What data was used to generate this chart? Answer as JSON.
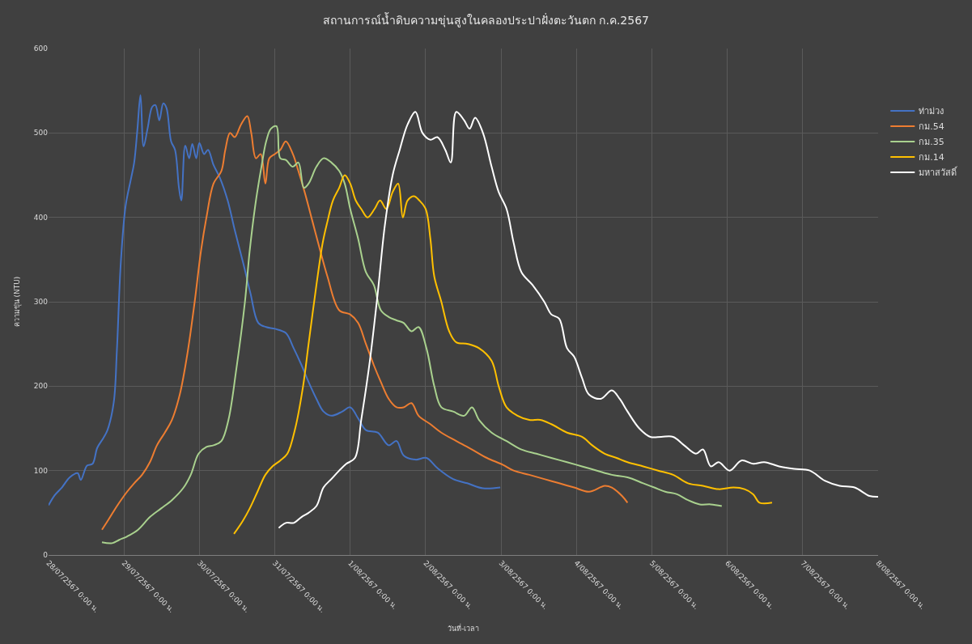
{
  "chart_data": {
    "type": "line",
    "title": "สถานการณ์น้ำดิบความขุ่นสูงในคลองประปาฝั่งตะวันตก ก.ค.2567",
    "xlabel": "วันที่-เวลา",
    "ylabel": "ความขุ่น (NTU)",
    "xlim": [
      "2567-07-28",
      "2567-08-08"
    ],
    "ylim": [
      0,
      600
    ],
    "yticks": [
      0,
      100,
      200,
      300,
      400,
      500,
      600
    ],
    "xticks": [
      {
        "value": "2567-07-28",
        "label": "28/07/2567 0:00 น."
      },
      {
        "value": "2567-07-29",
        "label": "29/07/2567 0:00 น."
      },
      {
        "value": "2567-07-30",
        "label": "30/07/2567 0:00 น."
      },
      {
        "value": "2567-07-31",
        "label": "31/07/2567 0:00 น."
      },
      {
        "value": "2567-08-01",
        "label": "1/08/2567 0:00 น."
      },
      {
        "value": "2567-08-02",
        "label": "2/08/2567 0:00 น."
      },
      {
        "value": "2567-08-03",
        "label": "3/08/2567 0:00 น."
      },
      {
        "value": "2567-08-04",
        "label": "4/08/2567 0:00 น."
      },
      {
        "value": "2567-08-05",
        "label": "5/08/2567 0:00 น."
      },
      {
        "value": "2567-08-06",
        "label": "6/08/2567 0:00 น."
      },
      {
        "value": "2567-08-07",
        "label": "7/08/2567 0:00 น."
      },
      {
        "value": "2567-08-08",
        "label": "8/08/2567 0:00 น."
      }
    ],
    "grid": true,
    "legend": "right",
    "line_style": "solid",
    "series": [
      {
        "name": "ท่าม่วง",
        "color": "#4472c4",
        "x": [
          "2567-07-28T00:00",
          "2567-07-28T02:00",
          "2567-07-28T04:15",
          "2567-07-28T06:45",
          "2567-07-28T09:15",
          "2567-07-28T10:15",
          "2567-07-28T12:15",
          "2567-07-28T14:00",
          "2567-07-28T15:30",
          "2567-07-28T17:30",
          "2567-07-28T18:45",
          "2567-07-28T20:45",
          "2567-07-28T21:45",
          "2567-07-28T23:00",
          "2567-07-29T00:30",
          "2567-07-29T02:15",
          "2567-07-29T03:15",
          "2567-07-29T04:15",
          "2567-07-29T05:15",
          "2567-07-29T06:15",
          "2567-07-29T07:30",
          "2567-07-29T09:00",
          "2567-07-29T10:00",
          "2567-07-29T11:15",
          "2567-07-29T12:30",
          "2567-07-29T13:30",
          "2567-07-29T15:00",
          "2567-07-29T16:15",
          "2567-07-29T17:30",
          "2567-07-29T18:15",
          "2567-07-29T19:30",
          "2567-07-29T20:45",
          "2567-07-29T21:45",
          "2567-07-29T23:00",
          "2567-07-30T00:00",
          "2567-07-30T01:30",
          "2567-07-30T02:45",
          "2567-07-30T04:30",
          "2567-07-30T06:30",
          "2567-07-30T09:00",
          "2567-07-30T11:15",
          "2567-07-30T14:00",
          "2567-07-30T16:15",
          "2567-07-30T18:45",
          "2567-07-30T21:15",
          "2567-07-31T00:00",
          "2567-07-31T03:30",
          "2567-07-31T06:00",
          "2567-07-31T08:30",
          "2567-07-31T10:45",
          "2567-07-31T13:15",
          "2567-07-31T15:30",
          "2567-07-31T18:00",
          "2567-07-31T21:30",
          "2567-08-01T00:00",
          "2567-08-01T02:30",
          "2567-08-01T05:00",
          "2567-08-01T08:45",
          "2567-08-01T12:15",
          "2567-08-01T14:45",
          "2567-08-01T17:00",
          "2567-08-01T20:45",
          "2567-08-02T00:15",
          "2567-08-02T03:45",
          "2567-08-02T08:45",
          "2567-08-02T13:15",
          "2567-08-02T18:15",
          "2567-08-02T23:45"
        ],
        "values": [
          59,
          71,
          80,
          92,
          97,
          89,
          106,
          108,
          127,
          139,
          148,
          181,
          243,
          347,
          413,
          446,
          465,
          503,
          545,
          484,
          505,
          531,
          533,
          515,
          535,
          530,
          490,
          480,
          435,
          420,
          485,
          470,
          487,
          470,
          488,
          475,
          480,
          462,
          447,
          420,
          385,
          345,
          310,
          275,
          270,
          268,
          263,
          245,
          225,
          205,
          185,
          170,
          165,
          170,
          175,
          162,
          148,
          145,
          130,
          135,
          118,
          113,
          115,
          103,
          90,
          85,
          79,
          80
        ]
      },
      {
        "name": "กม.54",
        "color": "#ed7d31",
        "x": [
          "2567-07-28T17:00",
          "2567-07-28T18:45",
          "2567-07-28T20:45",
          "2567-07-28T22:30",
          "2567-07-29T01:00",
          "2567-07-29T03:15",
          "2567-07-29T05:45",
          "2567-07-29T08:15",
          "2567-07-29T10:30",
          "2567-07-29T13:00",
          "2567-07-29T15:15",
          "2567-07-29T17:45",
          "2567-07-29T20:15",
          "2567-07-29T22:30",
          "2567-07-30T00:30",
          "2567-07-30T02:15",
          "2567-07-30T04:30",
          "2567-07-30T07:00",
          "2567-07-30T08:15",
          "2567-07-30T09:45",
          "2567-07-30T11:15",
          "2567-07-30T13:15",
          "2567-07-30T15:15",
          "2567-07-30T16:30",
          "2567-07-30T18:00",
          "2567-07-30T19:30",
          "2567-07-30T21:00",
          "2567-07-30T22:15",
          "2567-07-31T00:00",
          "2567-07-31T01:45",
          "2567-07-31T03:30",
          "2567-07-31T05:45",
          "2567-07-31T07:30",
          "2567-07-31T09:30",
          "2567-07-31T12:00",
          "2567-07-31T14:30",
          "2567-07-31T16:45",
          "2567-07-31T20:30",
          "2567-08-01T00:00",
          "2567-08-01T02:30",
          "2567-08-01T05:00",
          "2567-08-01T07:30",
          "2567-08-01T09:45",
          "2567-08-01T12:15",
          "2567-08-01T14:45",
          "2567-08-01T17:00",
          "2567-08-01T19:30",
          "2567-08-01T21:45",
          "2567-08-02T01:30",
          "2567-08-02T05:00",
          "2567-08-02T09:45",
          "2567-08-02T14:45",
          "2567-08-02T19:30",
          "2567-08-03T00:30",
          "2567-08-03T04:00",
          "2567-08-03T09:00",
          "2567-08-03T13:45",
          "2567-08-03T18:30",
          "2567-08-03T23:15",
          "2567-08-04T04:00",
          "2567-08-04T09:00",
          "2567-08-04T11:15",
          "2567-08-04T14:30",
          "2567-08-04T16:15"
        ],
        "values": [
          30,
          40,
          52,
          62,
          75,
          85,
          95,
          110,
          130,
          145,
          160,
          190,
          240,
          300,
          360,
          400,
          440,
          455,
          480,
          500,
          495,
          510,
          520,
          500,
          470,
          475,
          440,
          470,
          475,
          480,
          490,
          475,
          455,
          430,
          395,
          360,
          330,
          290,
          285,
          275,
          250,
          225,
          205,
          185,
          175,
          175,
          180,
          165,
          155,
          145,
          135,
          125,
          115,
          107,
          100,
          95,
          90,
          85,
          80,
          75,
          82,
          80,
          70,
          62
        ]
      },
      {
        "name": "กม.35",
        "color": "#a9d18e",
        "x": [
          "2567-07-28T17:00",
          "2567-07-28T20:15",
          "2567-07-28T22:30",
          "2567-07-29T01:00",
          "2567-07-29T04:30",
          "2567-07-29T08:15",
          "2567-07-29T11:45",
          "2567-07-29T15:15",
          "2567-07-29T19:00",
          "2567-07-29T21:15",
          "2567-07-29T23:45",
          "2567-07-30T02:15",
          "2567-07-30T04:30",
          "2567-07-30T07:00",
          "2567-07-30T09:15",
          "2567-07-30T11:45",
          "2567-07-30T14:30",
          "2567-07-30T16:00",
          "2567-07-30T18:00",
          "2567-07-30T19:45",
          "2567-07-30T21:15",
          "2567-07-30T22:45",
          "2567-07-31T00:30",
          "2567-07-31T01:45",
          "2567-07-31T03:30",
          "2567-07-31T05:45",
          "2567-07-31T07:30",
          "2567-07-31T09:15",
          "2567-07-31T10:45",
          "2567-07-31T13:15",
          "2567-07-31T15:30",
          "2567-07-31T18:00",
          "2567-07-31T20:30",
          "2567-07-31T22:15",
          "2567-08-01T00:00",
          "2567-08-01T02:30",
          "2567-08-01T05:00",
          "2567-08-01T07:30",
          "2567-08-01T09:45",
          "2567-08-01T12:15",
          "2567-08-01T14:45",
          "2567-08-01T17:00",
          "2567-08-01T19:30",
          "2567-08-01T21:45",
          "2567-08-02T00:15",
          "2567-08-02T02:45",
          "2567-08-02T05:00",
          "2567-08-02T08:45",
          "2567-08-02T12:15",
          "2567-08-02T14:45",
          "2567-08-02T17:00",
          "2567-08-02T21:00",
          "2567-08-03T01:45",
          "2567-08-03T06:30",
          "2567-08-03T11:15",
          "2567-08-03T16:00",
          "2567-08-03T21:00",
          "2567-08-04T01:45",
          "2567-08-04T06:30",
          "2567-08-04T11:15",
          "2567-08-04T16:15",
          "2567-08-04T21:15",
          "2567-08-05T00:45",
          "2567-08-05T04:15",
          "2567-08-05T08:00",
          "2567-08-05T11:30",
          "2567-08-05T15:15",
          "2567-08-05T18:45",
          "2567-08-05T22:15"
        ],
        "values": [
          15,
          14,
          18,
          22,
          30,
          45,
          55,
          65,
          80,
          95,
          120,
          128,
          130,
          135,
          160,
          220,
          300,
          360,
          420,
          460,
          490,
          505,
          508,
          470,
          468,
          460,
          465,
          435,
          440,
          460,
          470,
          465,
          455,
          440,
          410,
          375,
          335,
          320,
          290,
          282,
          278,
          275,
          265,
          270,
          245,
          200,
          175,
          170,
          165,
          175,
          160,
          145,
          135,
          125,
          120,
          115,
          110,
          105,
          100,
          95,
          92,
          85,
          80,
          75,
          72,
          65,
          60,
          60,
          58
        ]
      },
      {
        "name": "กม.14",
        "color": "#ffc000",
        "x": [
          "2567-07-30T11:00",
          "2567-07-30T13:45",
          "2567-07-30T16:00",
          "2567-07-30T18:30",
          "2567-07-30T21:00",
          "2567-07-30T23:15",
          "2567-07-31T01:45",
          "2567-07-31T04:00",
          "2567-07-31T06:30",
          "2567-07-31T09:00",
          "2567-07-31T10:45",
          "2567-07-31T13:15",
          "2567-07-31T15:15",
          "2567-07-31T16:45",
          "2567-07-31T18:30",
          "2567-07-31T20:30",
          "2567-07-31T22:15",
          "2567-08-01T00:00",
          "2567-08-01T01:45",
          "2567-08-01T03:30",
          "2567-08-01T05:30",
          "2567-08-01T07:45",
          "2567-08-01T09:30",
          "2567-08-01T11:30",
          "2567-08-01T13:30",
          "2567-08-01T15:15",
          "2567-08-01T16:45",
          "2567-08-01T18:15",
          "2567-08-01T20:15",
          "2567-08-01T22:00",
          "2567-08-02T00:00",
          "2567-08-02T01:30",
          "2567-08-02T02:45",
          "2567-08-02T05:00",
          "2567-08-02T07:30",
          "2567-08-02T09:45",
          "2567-08-02T13:30",
          "2567-08-02T17:00",
          "2567-08-02T21:00",
          "2567-08-02T23:15",
          "2567-08-03T01:45",
          "2567-08-03T05:15",
          "2567-08-03T09:00",
          "2567-08-03T12:30",
          "2567-08-03T16:00",
          "2567-08-03T21:00",
          "2567-08-04T01:45",
          "2567-08-04T05:00",
          "2567-08-04T09:00",
          "2567-08-04T12:45",
          "2567-08-04T16:15",
          "2567-08-04T21:15",
          "2567-08-05T02:00",
          "2567-08-05T06:45",
          "2567-08-05T11:30",
          "2567-08-05T16:15",
          "2567-08-05T21:15",
          "2567-08-06T02:00",
          "2567-08-06T05:30",
          "2567-08-06T08:15",
          "2567-08-06T10:15",
          "2567-08-06T14:15"
        ],
        "values": [
          25,
          40,
          55,
          75,
          95,
          105,
          112,
          120,
          150,
          200,
          250,
          320,
          370,
          395,
          420,
          435,
          450,
          440,
          420,
          410,
          400,
          410,
          420,
          410,
          430,
          440,
          400,
          420,
          425,
          420,
          410,
          375,
          330,
          300,
          265,
          252,
          250,
          245,
          230,
          200,
          175,
          165,
          160,
          160,
          155,
          145,
          140,
          130,
          120,
          115,
          110,
          105,
          100,
          95,
          85,
          82,
          78,
          80,
          78,
          72,
          62,
          62
        ]
      },
      {
        "name": "มหาสวัสดิ์",
        "color": "#ffffff",
        "x": [
          "2567-07-31T01:15",
          "2567-07-31T03:30",
          "2567-07-31T06:00",
          "2567-07-31T08:30",
          "2567-07-31T10:45",
          "2567-07-31T13:15",
          "2567-07-31T15:30",
          "2567-07-31T18:00",
          "2567-07-31T20:30",
          "2567-07-31T22:45",
          "2567-08-01T01:30",
          "2567-08-01T03:30",
          "2567-08-01T06:15",
          "2567-08-01T08:45",
          "2567-08-01T11:00",
          "2567-08-01T13:30",
          "2567-08-01T15:45",
          "2567-08-01T18:15",
          "2567-08-01T20:45",
          "2567-08-01T23:00",
          "2567-08-02T01:30",
          "2567-08-02T03:45",
          "2567-08-02T06:15",
          "2567-08-02T08:00",
          "2567-08-02T09:45",
          "2567-08-02T12:15",
          "2567-08-02T14:00",
          "2567-08-02T15:45",
          "2567-08-02T18:15",
          "2567-08-02T21:00",
          "2567-08-02T23:15",
          "2567-08-03T01:45",
          "2567-08-03T04:00",
          "2567-08-03T06:30",
          "2567-08-03T10:00",
          "2567-08-03T13:45",
          "2567-08-03T16:00",
          "2567-08-03T18:30",
          "2567-08-03T21:00",
          "2567-08-03T23:15",
          "2567-08-04T01:45",
          "2567-08-04T04:00",
          "2567-08-04T07:45",
          "2567-08-04T11:15",
          "2567-08-04T13:45",
          "2567-08-04T16:15",
          "2567-08-04T20:00",
          "2567-08-04T23:30",
          "2567-08-05T03:00",
          "2567-08-05T06:45",
          "2567-08-05T10:15",
          "2567-08-05T14:00",
          "2567-08-05T16:15",
          "2567-08-05T18:45",
          "2567-08-05T21:15",
          "2567-08-06T00:45",
          "2567-08-06T04:30",
          "2567-08-06T08:15",
          "2567-08-06T11:45",
          "2567-08-06T16:30",
          "2567-08-06T21:15",
          "2567-08-07T02:15",
          "2567-08-07T07:00",
          "2567-08-07T11:45",
          "2567-08-07T16:30",
          "2567-08-07T21:15",
          "2567-08-08T00:00"
        ],
        "values": [
          32,
          38,
          38,
          45,
          50,
          58,
          80,
          90,
          100,
          108,
          115,
          160,
          230,
          310,
          390,
          450,
          480,
          510,
          525,
          500,
          492,
          495,
          480,
          465,
          525,
          515,
          505,
          518,
          500,
          460,
          430,
          410,
          370,
          335,
          320,
          300,
          285,
          280,
          245,
          235,
          210,
          190,
          185,
          195,
          185,
          170,
          150,
          140,
          140,
          140,
          130,
          120,
          125,
          105,
          110,
          100,
          112,
          108,
          110,
          105,
          102,
          100,
          88,
          82,
          80,
          70,
          69
        ]
      }
    ]
  }
}
